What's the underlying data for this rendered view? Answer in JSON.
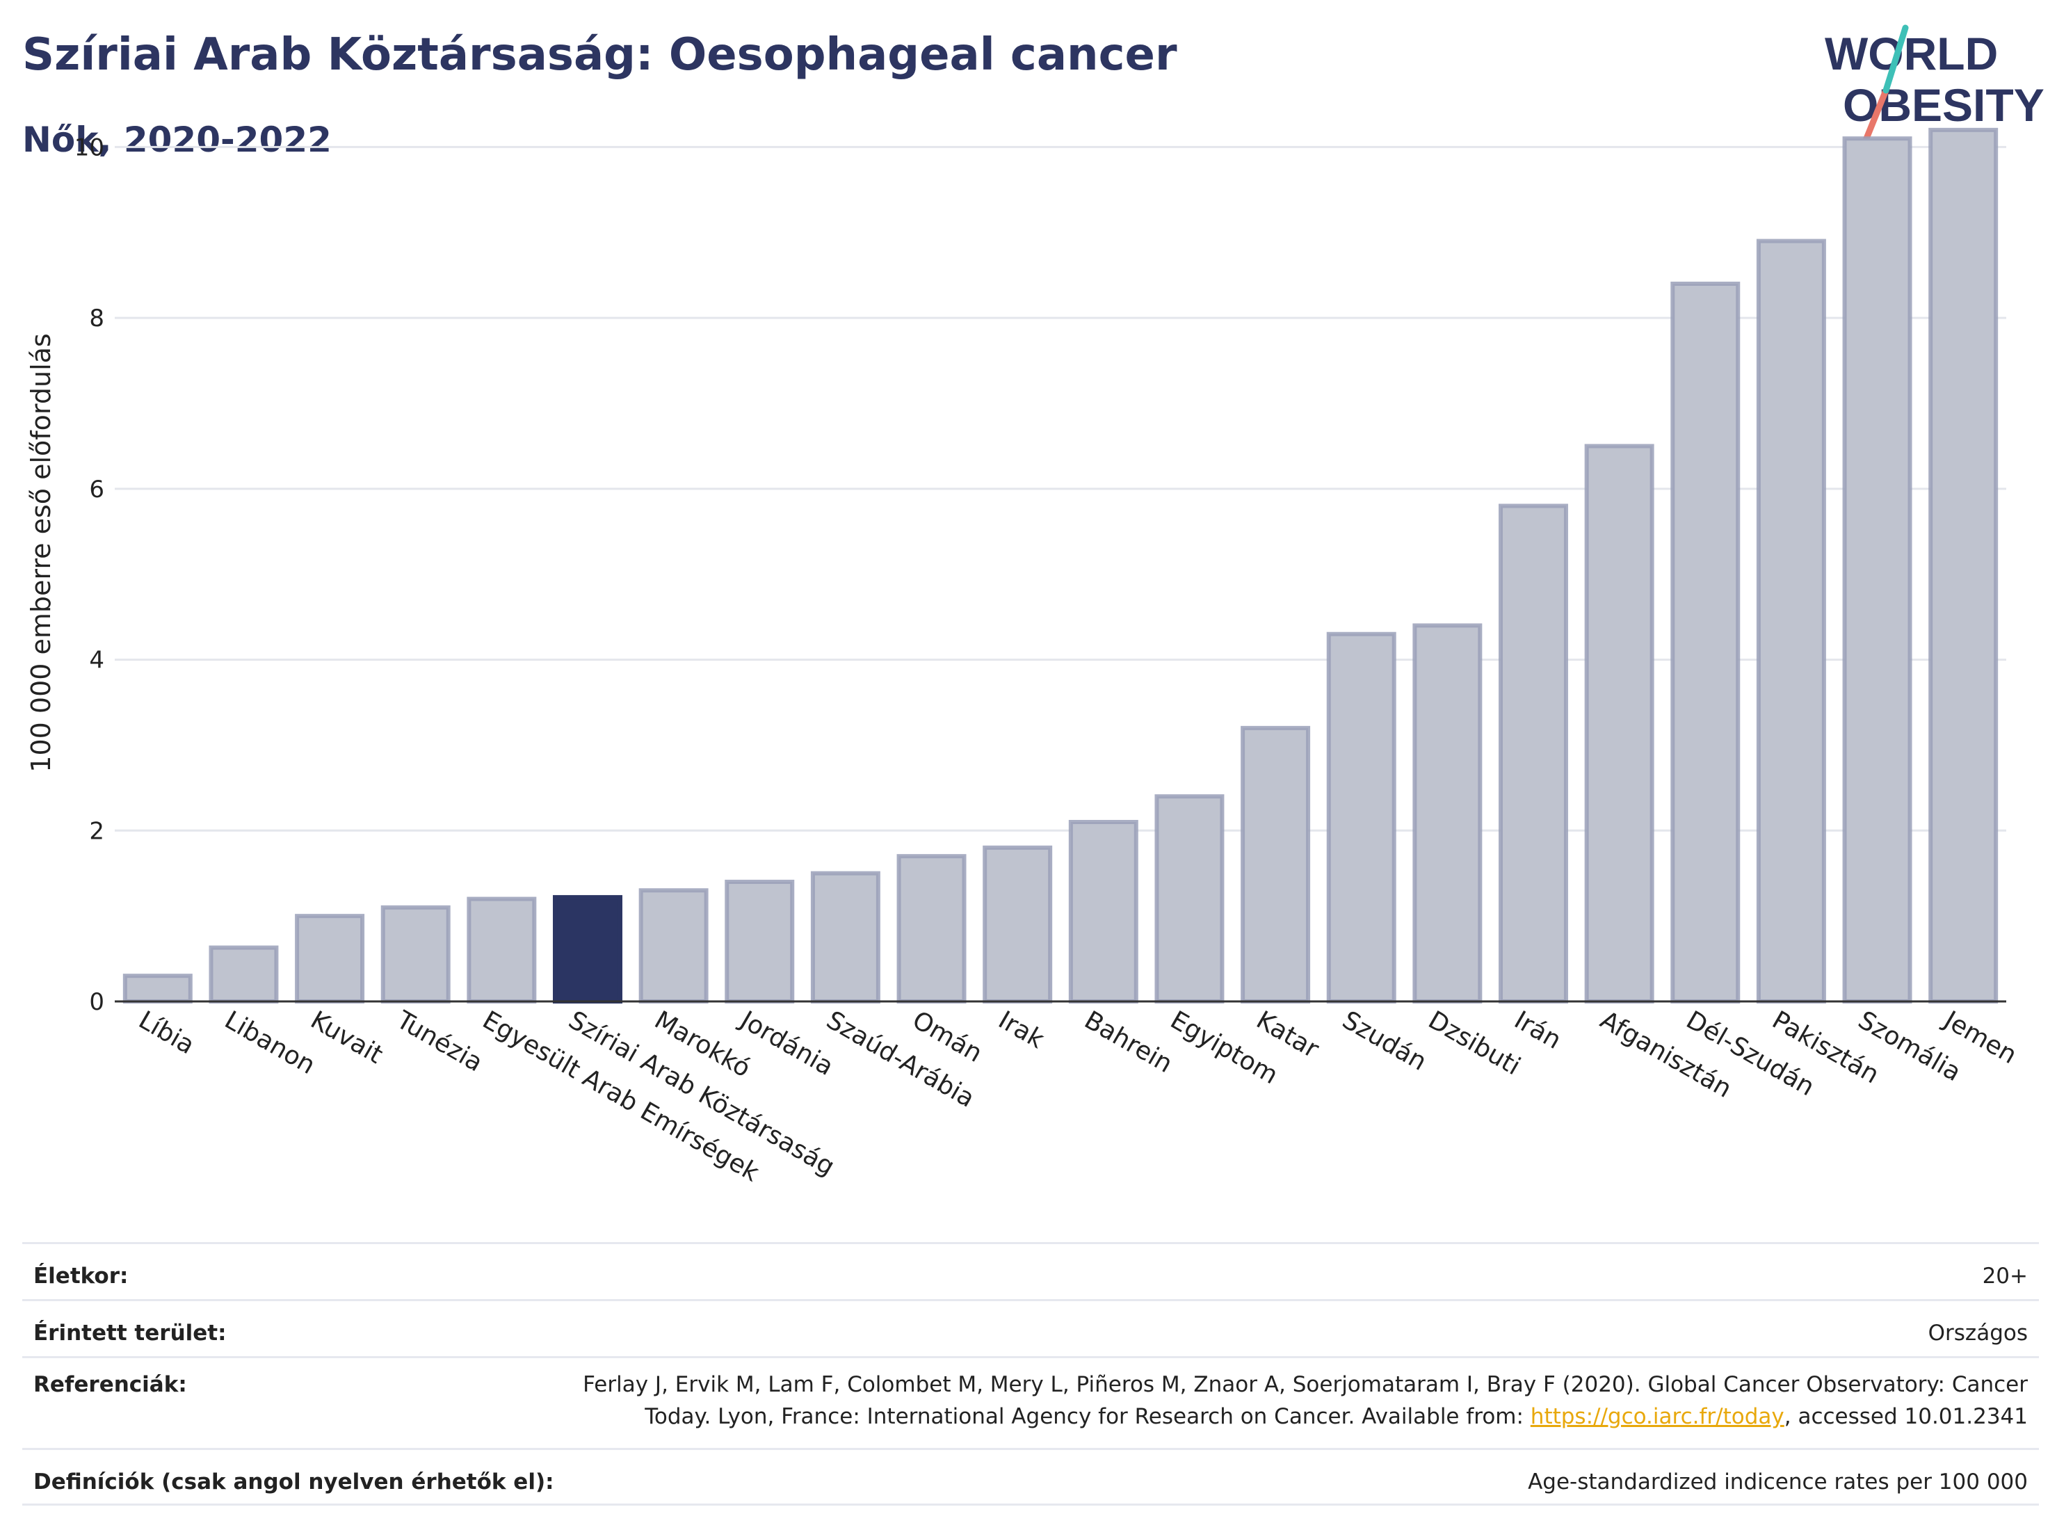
{
  "header": {
    "title": "Szíriai Arab Köztársaság: Oesophageal cancer",
    "subtitle": "Nők, 2020-2022"
  },
  "logo": {
    "line1": "WORLD",
    "line2": "OBESITY"
  },
  "colors": {
    "bar": "#bfc3cf",
    "bar_stroke": "#9aa0b8",
    "highlight": "#2b3563",
    "grid": "#e4e6ec",
    "text": "#2d3561"
  },
  "chart_data": {
    "type": "bar",
    "ylabel": "100 000 emberre eső előfordulás",
    "ylim": [
      0,
      10.5
    ],
    "yticks": [
      0,
      2,
      4,
      6,
      8,
      10
    ],
    "grid": true,
    "highlight": "Szíriai Arab Köztársaság",
    "categories": [
      "Líbia",
      "Libanon",
      "Kuvait",
      "Tunézia",
      "Egyesült Arab Emírségek",
      "Szíriai Arab Köztársaság",
      "Marokkó",
      "Jordánia",
      "Szaúd-Arábia",
      "Omán",
      "Irak",
      "Bahrein",
      "Egyiptom",
      "Katar",
      "Szudán",
      "Dzsibuti",
      "Irán",
      "Afganisztán",
      "Dél-Szudán",
      "Pakisztán",
      "Szomália",
      "Jemen"
    ],
    "values": [
      0.3,
      0.63,
      1.0,
      1.1,
      1.2,
      1.22,
      1.3,
      1.4,
      1.5,
      1.7,
      1.8,
      2.1,
      2.4,
      3.2,
      4.3,
      4.4,
      5.8,
      6.5,
      8.4,
      8.9,
      10.1,
      10.2
    ]
  },
  "info": {
    "age_label": "Életkor:",
    "age_value": "20+",
    "area_label": "Érintett terület:",
    "area_value": "Országos",
    "ref_label": "Referenciák:",
    "ref_line1": "Ferlay J, Ervik M, Lam F, Colombet M, Mery L, Piñeros M, Znaor A, Soerjomataram I, Bray F (2020). Global Cancer Observatory: Cancer",
    "ref_line2_pre": "Today. Lyon, France: International Agency for Research on Cancer. Available from: ",
    "ref_link": "https://gco.iarc.fr/today",
    "ref_line2_post": ", accessed 10.01.2341",
    "def_label": "Definíciók (csak angol nyelven érhetők el):",
    "def_value": "Age-standardized indicence rates per 100 000"
  }
}
